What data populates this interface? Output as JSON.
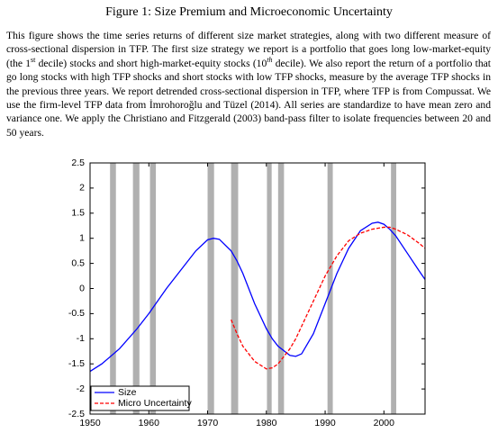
{
  "title": "Figure 1: Size Premium and Microeconomic Uncertainty",
  "caption": [
    "This figure shows the time series returns of different size market strategies, along with two different measure of cross-sectional dispersion in TFP. The first size strategy we report is a portfolio that goes long low-market-equity (the 1",
    "st",
    " decile) stocks and short high-market-equity stocks (10",
    "th",
    " decile).  We also report the return of a portfolio that go long stocks with high TFP shocks and short stocks with low TFP shocks, measure by the average TFP shocks in the previous three years. We report detrended cross-sectional dispersion in TFP, where TFP is from Compussat.  We use the firm-level TFP data from İmrohoroğlu and Tüzel (2014).  All series are standardize to have mean zero and variance one.  We apply the Christiano and Fitzgerald (2003) band-pass filter to isolate frequencies between 20 and 50 years."
  ],
  "chart_data": {
    "type": "line",
    "x": [
      1950,
      1952,
      1955,
      1958,
      1960,
      1963,
      1966,
      1968,
      1970,
      1971,
      1972,
      1974,
      1975,
      1976,
      1978,
      1980,
      1981,
      1982,
      1984,
      1985,
      1986,
      1988,
      1990,
      1992,
      1994,
      1996,
      1998,
      1999,
      2000,
      2001,
      2002,
      2004,
      2006,
      2007
    ],
    "series": [
      {
        "name": "Size",
        "color": "#0000ff",
        "dash": false,
        "values": [
          -1.65,
          -1.5,
          -1.2,
          -0.8,
          -0.5,
          0.0,
          0.45,
          0.75,
          0.97,
          1.0,
          0.98,
          0.75,
          0.55,
          0.3,
          -0.3,
          -0.8,
          -1.0,
          -1.15,
          -1.33,
          -1.35,
          -1.3,
          -0.9,
          -0.3,
          0.3,
          0.8,
          1.15,
          1.3,
          1.32,
          1.28,
          1.18,
          1.05,
          0.7,
          0.35,
          0.18
        ]
      },
      {
        "name": "Micro Uncertainty",
        "color": "#ff0000",
        "dash": true,
        "values": [
          null,
          null,
          null,
          null,
          null,
          null,
          null,
          null,
          null,
          null,
          null,
          -0.62,
          -0.9,
          -1.15,
          -1.45,
          -1.6,
          -1.58,
          -1.5,
          -1.2,
          -1.0,
          -0.75,
          -0.25,
          0.25,
          0.65,
          0.95,
          1.1,
          1.18,
          1.2,
          1.22,
          1.22,
          1.18,
          1.07,
          0.9,
          0.8
        ]
      }
    ],
    "shaded_periods": [
      [
        1953.4,
        1954.4
      ],
      [
        1957.3,
        1958.4
      ],
      [
        1960.2,
        1961.2
      ],
      [
        1970.0,
        1971.1
      ],
      [
        1974.0,
        1975.2
      ],
      [
        1980.1,
        1980.9
      ],
      [
        1982.0,
        1983.0
      ],
      [
        1990.4,
        1991.3
      ],
      [
        2001.2,
        2002.1
      ]
    ],
    "shade_color": "#b0b0b0",
    "xlim": [
      1950,
      2007
    ],
    "xticks": [
      1950,
      1960,
      1970,
      1980,
      1990,
      2000
    ],
    "ylim": [
      -2.5,
      2.5
    ],
    "yticks": [
      -2.5,
      -2,
      -1.5,
      -1,
      -0.5,
      0,
      0.5,
      1,
      1.5,
      2,
      2.5
    ],
    "grid": false,
    "legend": "lower left"
  }
}
